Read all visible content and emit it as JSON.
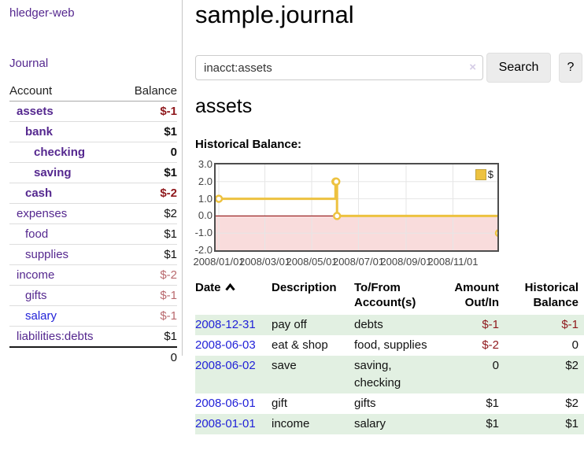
{
  "app": {
    "brand": "hledger-web",
    "nav_journal": "Journal"
  },
  "colors": {
    "accent_purple": "#55288f",
    "link_blue": "#2222d8",
    "negative_red": "#8f181c",
    "negative_dim_red": "#b9696e",
    "row_stripe_green": "#e2f0e2",
    "chart_series_yellow": "#edc240",
    "chart_negative_region": "#f9dcdc",
    "chart_zero_line": "#8b0000"
  },
  "sidebar": {
    "headers": {
      "account": "Account",
      "balance": "Balance"
    },
    "accounts": [
      {
        "name": "assets",
        "indent": 0,
        "bold": true,
        "name_color": "purple",
        "balance": "$-1",
        "balance_class": "neg-bold"
      },
      {
        "name": "bank",
        "indent": 1,
        "bold": true,
        "name_color": "purple",
        "balance": "$1",
        "balance_class": ""
      },
      {
        "name": "checking",
        "indent": 2,
        "bold": true,
        "name_color": "purple",
        "balance": "0",
        "balance_class": ""
      },
      {
        "name": "saving",
        "indent": 2,
        "bold": true,
        "name_color": "purple",
        "balance": "$1",
        "balance_class": ""
      },
      {
        "name": "cash",
        "indent": 1,
        "bold": true,
        "name_color": "purple",
        "balance": "$-2",
        "balance_class": "neg-bold"
      },
      {
        "name": "expenses",
        "indent": 0,
        "bold": false,
        "name_color": "purple",
        "balance": "$2",
        "balance_class": ""
      },
      {
        "name": "food",
        "indent": 1,
        "bold": false,
        "name_color": "purple",
        "balance": "$1",
        "balance_class": ""
      },
      {
        "name": "supplies",
        "indent": 1,
        "bold": false,
        "name_color": "purple",
        "balance": "$1",
        "balance_class": ""
      },
      {
        "name": "income",
        "indent": 0,
        "bold": false,
        "name_color": "purple",
        "balance": "$-2",
        "balance_class": "neg-dim"
      },
      {
        "name": "gifts",
        "indent": 1,
        "bold": false,
        "name_color": "purple",
        "balance": "$-1",
        "balance_class": "neg-dim"
      },
      {
        "name": "salary",
        "indent": 1,
        "bold": false,
        "name_color": "blue",
        "balance": "$-1",
        "balance_class": "neg-dim"
      },
      {
        "name": "liabilities:debts",
        "indent": 0,
        "bold": false,
        "name_color": "purple",
        "balance": "$1",
        "balance_class": ""
      }
    ],
    "total": "0"
  },
  "main": {
    "title": "sample.journal",
    "search": {
      "value": "inacct:assets",
      "clear_icon": "×",
      "button_label": "Search",
      "help_label": "?"
    },
    "account_heading": "assets",
    "chart_label": "Historical Balance:"
  },
  "chart_data": {
    "type": "line",
    "style": "step",
    "title": "Historical Balance",
    "series": [
      {
        "name": "$",
        "color": "#edc240",
        "points": [
          [
            "2008-01-01",
            1.0
          ],
          [
            "2008-06-01",
            2.0
          ],
          [
            "2008-06-02",
            2.0
          ],
          [
            "2008-06-03",
            0.0
          ],
          [
            "2008-12-31",
            -1.0
          ]
        ]
      }
    ],
    "x_ticks": [
      "2008/01/01",
      "2008/03/01",
      "2008/05/01",
      "2008/07/01",
      "2008/09/01",
      "2008/11/01"
    ],
    "y_ticks": [
      "3.0",
      "2.0",
      "1.0",
      "0.0",
      "-1.0",
      "-2.0"
    ],
    "xlim": [
      "2008-01-01",
      "2008-12-31"
    ],
    "ylim": [
      -2,
      3
    ],
    "grid": true,
    "legend_position": "top-right"
  },
  "register": {
    "headers": [
      {
        "line1": "Date",
        "line2": "",
        "align": "left",
        "sortable": true
      },
      {
        "line1": "Description",
        "line2": "",
        "align": "left"
      },
      {
        "line1": "To/From",
        "line2": "Account(s)",
        "align": "left"
      },
      {
        "line1": "Amount",
        "line2": "Out/In",
        "align": "right"
      },
      {
        "line1": "Historical",
        "line2": "Balance",
        "align": "right"
      }
    ],
    "rows": [
      {
        "date": "2008-12-31",
        "description": "pay off",
        "accounts": "debts",
        "amount": "$-1",
        "balance": "$-1"
      },
      {
        "date": "2008-06-03",
        "description": "eat & shop",
        "accounts": "food, supplies",
        "amount": "$-2",
        "balance": "0"
      },
      {
        "date": "2008-06-02",
        "description": "save",
        "accounts": "saving,\nchecking",
        "amount": "0",
        "balance": "$2"
      },
      {
        "date": "2008-06-01",
        "description": "gift",
        "accounts": "gifts",
        "amount": "$1",
        "balance": "$2"
      },
      {
        "date": "2008-01-01",
        "description": "income",
        "accounts": "salary",
        "amount": "$1",
        "balance": "$1"
      }
    ]
  }
}
